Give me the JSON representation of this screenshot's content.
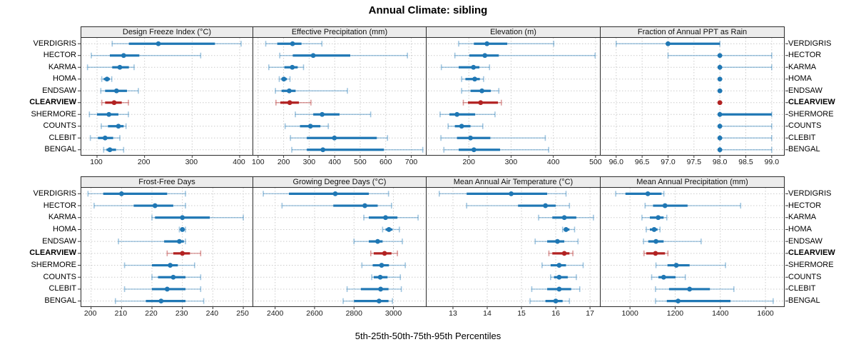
{
  "title": "Annual Climate: sibling",
  "caption": "5th-25th-50th-75th-95th Percentiles",
  "stations": [
    "VERDIGRIS",
    "HECTOR",
    "KARMA",
    "HOMA",
    "ENDSAW",
    "CLEARVIEW",
    "SHERMORE",
    "COUNTS",
    "CLEBIT",
    "BENGAL"
  ],
  "highlight_station": "CLEARVIEW",
  "percentile_labels": [
    "5th",
    "25th",
    "50th",
    "75th",
    "95th"
  ],
  "colors": {
    "point": "#1F77B4",
    "point_light": "rgba(31,119,180,0.42)",
    "highlight": "#B22222",
    "highlight_light": "rgba(178,34,34,0.45)",
    "strip_bg": "#ECECEC",
    "grid": "#CCCCCC",
    "border": "#2B2B2B",
    "tick": "#333333"
  },
  "chart_data": [
    {
      "type": "dotplot-interval",
      "row": 0,
      "col": 0,
      "title": "Design Freeze Index (°C)",
      "xlim": [
        67,
        430
      ],
      "tick_values": [
        100,
        200,
        300,
        400
      ],
      "tick_labels": [
        "100",
        "200",
        "300",
        "400"
      ],
      "series": [
        {
          "station": "VERDIGRIS",
          "values": [
            132,
            167,
            229,
            348,
            403
          ]
        },
        {
          "station": "HECTOR",
          "values": [
            88,
            127,
            156,
            189,
            318
          ]
        },
        {
          "station": "KARMA",
          "values": [
            80,
            132,
            148,
            167,
            178
          ]
        },
        {
          "station": "HOMA",
          "values": [
            110,
            114,
            121,
            127,
            131
          ]
        },
        {
          "station": "ENDSAW",
          "values": [
            108,
            117,
            141,
            163,
            187
          ]
        },
        {
          "station": "CLEARVIEW",
          "values": [
            110,
            117,
            136,
            152,
            166
          ]
        },
        {
          "station": "SHERMORE",
          "values": [
            84,
            100,
            125,
            145,
            166
          ]
        },
        {
          "station": "COUNTS",
          "values": [
            109,
            123,
            145,
            156,
            161
          ]
        },
        {
          "station": "CLEBIT",
          "values": [
            86,
            102,
            117,
            134,
            148
          ]
        },
        {
          "station": "BENGAL",
          "values": [
            114,
            120,
            127,
            140,
            156
          ]
        }
      ]
    },
    {
      "type": "dotplot-interval",
      "row": 0,
      "col": 1,
      "title": "Effective Precipitation (mm)",
      "xlim": [
        81,
        760
      ],
      "tick_values": [
        100,
        200,
        300,
        400,
        500,
        600,
        700
      ],
      "tick_labels": [
        "100",
        "200",
        "300",
        "400",
        "500",
        "600",
        "700"
      ],
      "series": [
        {
          "station": "VERDIGRIS",
          "values": [
            130,
            175,
            235,
            270,
            350
          ]
        },
        {
          "station": "HECTOR",
          "values": [
            185,
            236,
            316,
            461,
            685
          ]
        },
        {
          "station": "KARMA",
          "values": [
            142,
            203,
            234,
            255,
            278
          ]
        },
        {
          "station": "HOMA",
          "values": [
            183,
            191,
            201,
            213,
            225
          ]
        },
        {
          "station": "ENDSAW",
          "values": [
            168,
            192,
            222,
            247,
            450
          ]
        },
        {
          "station": "CLEARVIEW",
          "values": [
            170,
            187,
            224,
            260,
            307
          ]
        },
        {
          "station": "SHERMORE",
          "values": [
            246,
            316,
            351,
            419,
            541
          ]
        },
        {
          "station": "COUNTS",
          "values": [
            206,
            264,
            305,
            344,
            375
          ]
        },
        {
          "station": "CLEBIT",
          "values": [
            227,
            291,
            399,
            565,
            607
          ]
        },
        {
          "station": "BENGAL",
          "values": [
            232,
            291,
            354,
            593,
            745
          ]
        }
      ]
    },
    {
      "type": "dotplot-interval",
      "row": 0,
      "col": 2,
      "title": "Elevation (m)",
      "xlim": [
        100,
        512
      ],
      "tick_values": [
        200,
        300,
        400,
        500
      ],
      "tick_labels": [
        "200",
        "300",
        "400",
        "500"
      ],
      "series": [
        {
          "station": "VERDIGRIS",
          "values": [
            176,
            212,
            243,
            291,
            401
          ]
        },
        {
          "station": "HECTOR",
          "values": [
            167,
            201,
            238,
            271,
            499
          ]
        },
        {
          "station": "KARMA",
          "values": [
            135,
            176,
            211,
            225,
            249
          ]
        },
        {
          "station": "HOMA",
          "values": [
            183,
            192,
            214,
            226,
            235
          ]
        },
        {
          "station": "ENDSAW",
          "values": [
            183,
            204,
            231,
            252,
            271
          ]
        },
        {
          "station": "CLEARVIEW",
          "values": [
            187,
            198,
            228,
            269,
            277
          ]
        },
        {
          "station": "SHERMORE",
          "values": [
            132,
            154,
            172,
            215,
            262
          ]
        },
        {
          "station": "COUNTS",
          "values": [
            151,
            167,
            183,
            204,
            233
          ]
        },
        {
          "station": "CLEBIT",
          "values": [
            134,
            172,
            204,
            251,
            381
          ]
        },
        {
          "station": "BENGAL",
          "values": [
            141,
            176,
            212,
            274,
            389
          ]
        }
      ]
    },
    {
      "type": "dotplot-interval",
      "row": 0,
      "col": 3,
      "title": "Fraction of Annual PPT as Rain",
      "xlim": [
        95.7,
        99.25
      ],
      "tick_values": [
        96.0,
        96.5,
        97.0,
        97.5,
        98.0,
        98.5,
        99.0
      ],
      "tick_labels": [
        "96.0",
        "96.5",
        "97.0",
        "97.5",
        "98.0",
        "98.5",
        "99.0"
      ],
      "series": [
        {
          "station": "VERDIGRIS",
          "values": [
            96.0,
            97.0,
            97.0,
            98.0,
            98.0
          ]
        },
        {
          "station": "HECTOR",
          "values": [
            97.0,
            98.0,
            98.0,
            98.0,
            99.0
          ]
        },
        {
          "station": "KARMA",
          "values": [
            98.0,
            98.0,
            98.0,
            98.0,
            99.0
          ]
        },
        {
          "station": "HOMA",
          "values": [
            98.0,
            98.0,
            98.0,
            98.0,
            98.0
          ]
        },
        {
          "station": "ENDSAW",
          "values": [
            98.0,
            98.0,
            98.0,
            98.0,
            98.0
          ]
        },
        {
          "station": "CLEARVIEW",
          "values": [
            98.0,
            98.0,
            98.0,
            98.0,
            98.0
          ]
        },
        {
          "station": "SHERMORE",
          "values": [
            98.0,
            98.0,
            98.0,
            99.0,
            99.0
          ]
        },
        {
          "station": "COUNTS",
          "values": [
            98.0,
            98.0,
            98.0,
            98.0,
            99.0
          ]
        },
        {
          "station": "CLEBIT",
          "values": [
            98.0,
            98.0,
            98.0,
            98.0,
            99.0
          ]
        },
        {
          "station": "BENGAL",
          "values": [
            98.0,
            98.0,
            98.0,
            98.0,
            99.0
          ]
        }
      ]
    },
    {
      "type": "dotplot-interval",
      "row": 1,
      "col": 0,
      "title": "Frost-Free Days",
      "xlim": [
        196.8,
        253.5
      ],
      "tick_values": [
        200,
        210,
        220,
        230,
        240,
        250
      ],
      "tick_labels": [
        "200",
        "210",
        "220",
        "230",
        "240",
        "250"
      ],
      "series": [
        {
          "station": "VERDIGRIS",
          "values": [
            199,
            204,
            210,
            225,
            231
          ]
        },
        {
          "station": "HECTOR",
          "values": [
            201,
            214,
            221,
            227,
            231
          ]
        },
        {
          "station": "KARMA",
          "values": [
            220,
            221,
            230,
            239,
            250
          ]
        },
        {
          "station": "HOMA",
          "values": [
            229,
            229.5,
            230,
            230.5,
            231
          ]
        },
        {
          "station": "ENDSAW",
          "values": [
            209,
            224,
            229,
            230.5,
            231
          ]
        },
        {
          "station": "CLEARVIEW",
          "values": [
            225,
            227,
            230,
            232.5,
            236
          ]
        },
        {
          "station": "SHERMORE",
          "values": [
            211,
            220,
            226,
            228.5,
            234
          ]
        },
        {
          "station": "COUNTS",
          "values": [
            220,
            222,
            227,
            231,
            236
          ]
        },
        {
          "station": "CLEBIT",
          "values": [
            211,
            220,
            225,
            231,
            236
          ]
        },
        {
          "station": "BENGAL",
          "values": [
            208,
            218,
            223,
            231,
            237
          ]
        }
      ]
    },
    {
      "type": "dotplot-interval",
      "row": 1,
      "col": 1,
      "title": "Growing Degree Days (°C)",
      "xlim": [
        2289,
        3168
      ],
      "tick_values": [
        2400,
        2600,
        2800,
        3000
      ],
      "tick_labels": [
        "2400",
        "2600",
        "2800",
        "3000"
      ],
      "series": [
        {
          "station": "VERDIGRIS",
          "values": [
            2340,
            2470,
            2705,
            2875,
            2975
          ]
        },
        {
          "station": "HECTOR",
          "values": [
            2435,
            2695,
            2855,
            2920,
            2990
          ]
        },
        {
          "station": "KARMA",
          "values": [
            2850,
            2875,
            2960,
            3020,
            3125
          ]
        },
        {
          "station": "HOMA",
          "values": [
            2945,
            2960,
            2977,
            2995,
            3030
          ]
        },
        {
          "station": "ENDSAW",
          "values": [
            2800,
            2875,
            2920,
            2945,
            3045
          ]
        },
        {
          "station": "CLEARVIEW",
          "values": [
            2885,
            2900,
            2955,
            2990,
            3020
          ]
        },
        {
          "station": "SHERMORE",
          "values": [
            2840,
            2895,
            2940,
            2977,
            3060
          ]
        },
        {
          "station": "COUNTS",
          "values": [
            2890,
            2900,
            2933,
            2970,
            3035
          ]
        },
        {
          "station": "CLEBIT",
          "values": [
            2765,
            2835,
            2935,
            2975,
            3040
          ]
        },
        {
          "station": "BENGAL",
          "values": [
            2745,
            2800,
            2927,
            2975,
            2995
          ]
        }
      ]
    },
    {
      "type": "dotplot-interval",
      "row": 1,
      "col": 2,
      "title": "Mean Annual Air Temperature (°C)",
      "xlim": [
        12.23,
        17.31
      ],
      "tick_values": [
        13,
        14,
        15,
        16,
        17
      ],
      "tick_labels": [
        "13",
        "14",
        "15",
        "16",
        "17"
      ],
      "series": [
        {
          "station": "VERDIGRIS",
          "values": [
            12.6,
            13.4,
            14.7,
            15.75,
            16.3
          ]
        },
        {
          "station": "HECTOR",
          "values": [
            13.4,
            14.9,
            15.7,
            16.0,
            16.4
          ]
        },
        {
          "station": "KARMA",
          "values": [
            15.5,
            15.9,
            16.25,
            16.6,
            17.1
          ]
        },
        {
          "station": "HOMA",
          "values": [
            16.2,
            16.25,
            16.3,
            16.4,
            16.55
          ]
        },
        {
          "station": "ENDSAW",
          "values": [
            15.4,
            15.75,
            16.05,
            16.25,
            16.65
          ]
        },
        {
          "station": "CLEARVIEW",
          "values": [
            15.8,
            15.9,
            16.25,
            16.4,
            16.5
          ]
        },
        {
          "station": "SHERMORE",
          "values": [
            15.6,
            15.85,
            16.1,
            16.3,
            16.8
          ]
        },
        {
          "station": "COUNTS",
          "values": [
            15.85,
            15.95,
            16.1,
            16.35,
            16.6
          ]
        },
        {
          "station": "CLEBIT",
          "values": [
            15.3,
            15.75,
            16.1,
            16.45,
            16.7
          ]
        },
        {
          "station": "BENGAL",
          "values": [
            15.25,
            15.7,
            16.0,
            16.2,
            16.4
          ]
        }
      ]
    },
    {
      "type": "dotplot-interval",
      "row": 1,
      "col": 3,
      "title": "Mean Annual Precipitation (mm)",
      "xlim": [
        870,
        1685
      ],
      "tick_values": [
        1000,
        1200,
        1400,
        1600
      ],
      "tick_labels": [
        "1000",
        "1200",
        "1400",
        "1600"
      ],
      "series": [
        {
          "station": "VERDIGRIS",
          "values": [
            937,
            980,
            1079,
            1140,
            1150
          ]
        },
        {
          "station": "HECTOR",
          "values": [
            1067,
            1102,
            1155,
            1255,
            1490
          ]
        },
        {
          "station": "KARMA",
          "values": [
            1053,
            1088,
            1125,
            1149,
            1163
          ]
        },
        {
          "station": "HOMA",
          "values": [
            1072,
            1088,
            1107,
            1122,
            1133
          ]
        },
        {
          "station": "ENDSAW",
          "values": [
            1060,
            1081,
            1115,
            1149,
            1315
          ]
        },
        {
          "station": "CLEARVIEW",
          "values": [
            1062,
            1072,
            1113,
            1155,
            1168
          ]
        },
        {
          "station": "SHERMORE",
          "values": [
            1115,
            1166,
            1205,
            1264,
            1423
          ]
        },
        {
          "station": "COUNTS",
          "values": [
            1096,
            1126,
            1149,
            1202,
            1245
          ]
        },
        {
          "station": "CLEBIT",
          "values": [
            1113,
            1173,
            1264,
            1354,
            1460
          ]
        },
        {
          "station": "BENGAL",
          "values": [
            1113,
            1163,
            1213,
            1445,
            1634
          ]
        }
      ]
    }
  ]
}
